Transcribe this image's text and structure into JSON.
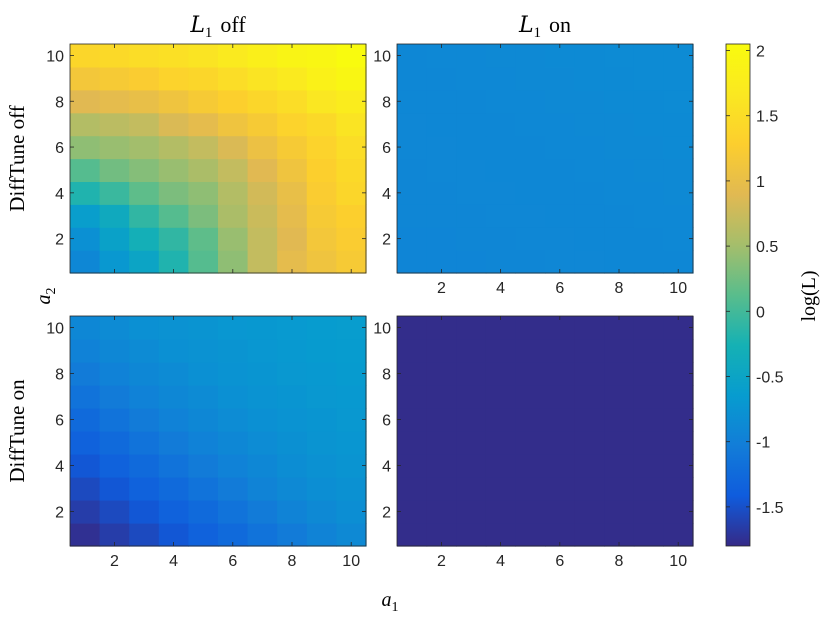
{
  "chart_data": {
    "type": "heatmap",
    "layout": "2x2 grid of heatmaps sharing one colorbar",
    "column_titles": [
      "off",
      "on"
    ],
    "column_title_symbol": "L",
    "column_title_symbol_subscript": "1",
    "row_titles": [
      "DiffTune off",
      "DiffTune on"
    ],
    "xlabel": "a",
    "xlabel_subscript": "1",
    "ylabel": "a",
    "ylabel_subscript": "2",
    "x_ticks": [
      "2",
      "4",
      "6",
      "8",
      "10"
    ],
    "y_ticks": [
      "2",
      "4",
      "6",
      "8",
      "10"
    ],
    "xlim": [
      0.5,
      10.5
    ],
    "ylim": [
      0.5,
      10.5
    ],
    "colormap": "parula",
    "colorbar": {
      "label": "log(L)",
      "range": [
        -1.8,
        2.05
      ],
      "ticks": [
        "2",
        "1.5",
        "1",
        "0.5",
        "0",
        "-0.5",
        "-1",
        "-1.5"
      ]
    },
    "panels": [
      {
        "row": "DiffTune off",
        "column": "off",
        "note": "rows listed from a2=1 (bottom) to a2=10 (top); columns a1=1..10",
        "values": [
          [
            -0.9,
            -0.7,
            -0.5,
            -0.2,
            0.1,
            0.4,
            0.7,
            0.95,
            1.1,
            1.2
          ],
          [
            -0.8,
            -0.55,
            -0.3,
            -0.1,
            0.15,
            0.45,
            0.7,
            0.9,
            1.15,
            1.25
          ],
          [
            -0.6,
            -0.4,
            -0.1,
            0.1,
            0.3,
            0.55,
            0.75,
            0.95,
            1.2,
            1.3
          ],
          [
            -0.2,
            -0.05,
            0.15,
            0.3,
            0.4,
            0.6,
            0.8,
            1.0,
            1.25,
            1.4
          ],
          [
            0.1,
            0.25,
            0.35,
            0.45,
            0.55,
            0.7,
            0.9,
            1.1,
            1.3,
            1.45
          ],
          [
            0.4,
            0.45,
            0.5,
            0.6,
            0.7,
            0.85,
            1.05,
            1.2,
            1.35,
            1.5
          ],
          [
            0.6,
            0.65,
            0.7,
            0.85,
            0.95,
            1.1,
            1.2,
            1.35,
            1.45,
            1.6
          ],
          [
            0.9,
            0.95,
            1.0,
            1.1,
            1.2,
            1.3,
            1.4,
            1.5,
            1.65,
            1.75
          ],
          [
            1.15,
            1.2,
            1.25,
            1.35,
            1.4,
            1.5,
            1.6,
            1.7,
            1.85,
            1.95
          ],
          [
            1.4,
            1.45,
            1.5,
            1.55,
            1.6,
            1.7,
            1.8,
            1.9,
            1.95,
            2.05
          ]
        ]
      },
      {
        "row": "DiffTune off",
        "column": "on",
        "note": "nearly uniform",
        "values": [
          [
            -0.93,
            -0.93,
            -0.93,
            -0.92,
            -0.92,
            -0.91,
            -0.91,
            -0.9,
            -0.9,
            -0.9
          ],
          [
            -0.93,
            -0.93,
            -0.92,
            -0.92,
            -0.91,
            -0.91,
            -0.9,
            -0.9,
            -0.9,
            -0.89
          ],
          [
            -0.92,
            -0.92,
            -0.92,
            -0.91,
            -0.91,
            -0.9,
            -0.9,
            -0.9,
            -0.89,
            -0.89
          ],
          [
            -0.92,
            -0.92,
            -0.91,
            -0.91,
            -0.9,
            -0.9,
            -0.9,
            -0.89,
            -0.89,
            -0.88
          ],
          [
            -0.92,
            -0.91,
            -0.91,
            -0.9,
            -0.9,
            -0.9,
            -0.89,
            -0.89,
            -0.88,
            -0.88
          ],
          [
            -0.91,
            -0.91,
            -0.9,
            -0.9,
            -0.9,
            -0.89,
            -0.89,
            -0.88,
            -0.88,
            -0.87
          ],
          [
            -0.91,
            -0.9,
            -0.9,
            -0.9,
            -0.89,
            -0.89,
            -0.88,
            -0.88,
            -0.87,
            -0.87
          ],
          [
            -0.9,
            -0.9,
            -0.9,
            -0.89,
            -0.89,
            -0.88,
            -0.88,
            -0.87,
            -0.87,
            -0.86
          ],
          [
            -0.9,
            -0.9,
            -0.89,
            -0.89,
            -0.88,
            -0.88,
            -0.87,
            -0.87,
            -0.86,
            -0.86
          ],
          [
            -0.9,
            -0.89,
            -0.89,
            -0.88,
            -0.88,
            -0.87,
            -0.87,
            -0.86,
            -0.86,
            -0.85
          ]
        ]
      },
      {
        "row": "DiffTune on",
        "column": "off",
        "note": "rows listed from a2=1 (bottom) to a2=10 (top); columns a1=1..10",
        "values": [
          [
            -1.75,
            -1.65,
            -1.55,
            -1.45,
            -1.35,
            -1.25,
            -1.15,
            -1.05,
            -0.95,
            -0.88
          ],
          [
            -1.65,
            -1.55,
            -1.45,
            -1.35,
            -1.25,
            -1.15,
            -1.05,
            -0.95,
            -0.88,
            -0.82
          ],
          [
            -1.55,
            -1.45,
            -1.35,
            -1.25,
            -1.15,
            -1.05,
            -0.95,
            -0.88,
            -0.82,
            -0.78
          ],
          [
            -1.45,
            -1.35,
            -1.25,
            -1.15,
            -1.05,
            -0.97,
            -0.9,
            -0.83,
            -0.78,
            -0.74
          ],
          [
            -1.35,
            -1.25,
            -1.15,
            -1.05,
            -0.97,
            -0.9,
            -0.84,
            -0.79,
            -0.75,
            -0.72
          ],
          [
            -1.25,
            -1.15,
            -1.05,
            -0.97,
            -0.9,
            -0.84,
            -0.8,
            -0.76,
            -0.73,
            -0.7
          ],
          [
            -1.15,
            -1.05,
            -0.97,
            -0.9,
            -0.85,
            -0.8,
            -0.76,
            -0.73,
            -0.7,
            -0.68
          ],
          [
            -1.05,
            -0.97,
            -0.9,
            -0.85,
            -0.8,
            -0.76,
            -0.73,
            -0.7,
            -0.68,
            -0.66
          ],
          [
            -0.97,
            -0.9,
            -0.85,
            -0.8,
            -0.77,
            -0.74,
            -0.71,
            -0.68,
            -0.66,
            -0.64
          ],
          [
            -0.9,
            -0.85,
            -0.8,
            -0.77,
            -0.74,
            -0.71,
            -0.69,
            -0.67,
            -0.65,
            -0.63
          ]
        ]
      },
      {
        "row": "DiffTune on",
        "column": "on",
        "note": "uniform",
        "values": [
          [
            -1.78,
            -1.78,
            -1.78,
            -1.78,
            -1.78,
            -1.78,
            -1.78,
            -1.78,
            -1.78,
            -1.78
          ],
          [
            -1.78,
            -1.78,
            -1.78,
            -1.78,
            -1.78,
            -1.78,
            -1.78,
            -1.78,
            -1.78,
            -1.78
          ],
          [
            -1.78,
            -1.78,
            -1.78,
            -1.78,
            -1.78,
            -1.78,
            -1.78,
            -1.78,
            -1.78,
            -1.78
          ],
          [
            -1.78,
            -1.78,
            -1.78,
            -1.78,
            -1.78,
            -1.78,
            -1.78,
            -1.78,
            -1.78,
            -1.78
          ],
          [
            -1.78,
            -1.78,
            -1.78,
            -1.78,
            -1.78,
            -1.78,
            -1.78,
            -1.78,
            -1.78,
            -1.78
          ],
          [
            -1.78,
            -1.78,
            -1.78,
            -1.78,
            -1.78,
            -1.78,
            -1.78,
            -1.78,
            -1.78,
            -1.78
          ],
          [
            -1.78,
            -1.78,
            -1.78,
            -1.78,
            -1.78,
            -1.78,
            -1.78,
            -1.78,
            -1.78,
            -1.78
          ],
          [
            -1.78,
            -1.78,
            -1.78,
            -1.78,
            -1.78,
            -1.78,
            -1.78,
            -1.78,
            -1.78,
            -1.78
          ],
          [
            -1.78,
            -1.78,
            -1.78,
            -1.78,
            -1.78,
            -1.78,
            -1.78,
            -1.78,
            -1.78,
            -1.78
          ],
          [
            -1.78,
            -1.78,
            -1.78,
            -1.78,
            -1.78,
            -1.78,
            -1.78,
            -1.78,
            -1.78,
            -1.78
          ]
        ]
      }
    ]
  }
}
